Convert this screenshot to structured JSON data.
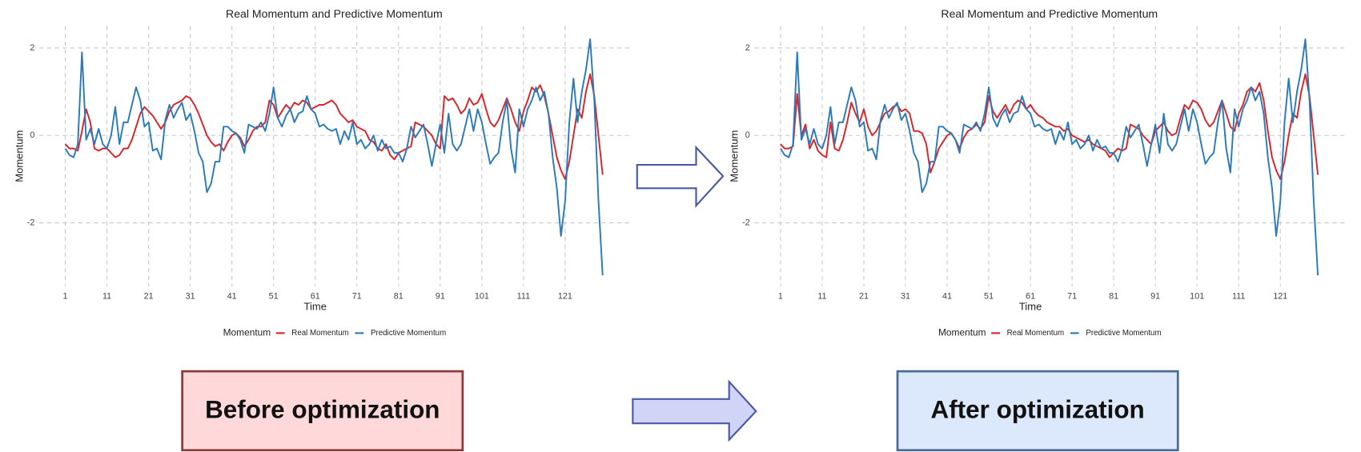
{
  "chart_data": [
    {
      "type": "line",
      "title": "Real Momentum and Predictive Momentum",
      "x_label": "Time",
      "y_label": "Momentum",
      "legend_title": "Momentum",
      "grid": true,
      "xlim": [
        -5.3,
        136.4
      ],
      "ylim": [
        -3.45,
        2.5
      ],
      "xticks": [
        1,
        11,
        21,
        31,
        41,
        51,
        61,
        71,
        81,
        91,
        101,
        111,
        121
      ],
      "yticks": [
        -2,
        0,
        2
      ],
      "x": [
        1,
        2,
        3,
        4,
        5,
        6,
        7,
        8,
        9,
        10,
        11,
        12,
        13,
        14,
        15,
        16,
        17,
        18,
        19,
        20,
        21,
        22,
        23,
        24,
        25,
        26,
        27,
        28,
        29,
        30,
        31,
        32,
        33,
        34,
        35,
        36,
        37,
        38,
        39,
        40,
        41,
        42,
        43,
        44,
        45,
        46,
        47,
        48,
        49,
        50,
        51,
        52,
        53,
        54,
        55,
        56,
        57,
        58,
        59,
        60,
        61,
        62,
        63,
        64,
        65,
        66,
        67,
        68,
        69,
        70,
        71,
        72,
        73,
        74,
        75,
        76,
        77,
        78,
        79,
        80,
        81,
        82,
        83,
        84,
        85,
        86,
        87,
        88,
        89,
        90,
        91,
        92,
        93,
        94,
        95,
        96,
        97,
        98,
        99,
        100,
        101,
        102,
        103,
        104,
        105,
        106,
        107,
        108,
        109,
        110,
        111,
        112,
        113,
        114,
        115,
        116,
        117,
        118,
        119,
        120,
        121,
        122,
        123,
        124,
        125,
        126,
        127,
        128,
        129,
        130
      ],
      "series": [
        {
          "name": "Real Momentum",
          "color": "#d7262b",
          "values": [
            -0.2,
            -0.3,
            -0.3,
            -0.35,
            0.1,
            0.6,
            0.3,
            -0.3,
            -0.35,
            -0.3,
            -0.3,
            -0.4,
            -0.5,
            -0.45,
            -0.3,
            -0.3,
            -0.1,
            0.2,
            0.5,
            0.65,
            0.55,
            0.45,
            0.3,
            0.15,
            0.3,
            0.55,
            0.7,
            0.75,
            0.8,
            0.9,
            0.85,
            0.7,
            0.5,
            0.25,
            0.0,
            -0.15,
            -0.25,
            -0.2,
            -0.35,
            -0.15,
            0.0,
            0.05,
            -0.05,
            -0.25,
            -0.1,
            0.1,
            0.2,
            0.2,
            0.3,
            0.8,
            0.7,
            0.4,
            0.55,
            0.7,
            0.6,
            0.75,
            0.7,
            0.8,
            0.75,
            0.6,
            0.65,
            0.7,
            0.7,
            0.75,
            0.8,
            0.7,
            0.5,
            0.4,
            0.3,
            0.35,
            0.2,
            0.15,
            0.1,
            -0.1,
            -0.15,
            -0.3,
            -0.35,
            -0.2,
            -0.45,
            -0.55,
            -0.4,
            -0.35,
            -0.3,
            -0.25,
            0.3,
            0.25,
            0.2,
            0.1,
            0.0,
            -0.2,
            -0.3,
            0.9,
            0.8,
            0.85,
            0.7,
            0.5,
            0.6,
            0.85,
            0.7,
            0.75,
            0.95,
            0.6,
            0.3,
            0.2,
            0.35,
            0.6,
            0.85,
            0.6,
            0.3,
            0.1,
            0.55,
            0.8,
            1.1,
            1.0,
            1.15,
            0.9,
            0.5,
            0.0,
            -0.5,
            -0.8,
            -1.0,
            -0.6,
            0.0,
            0.6,
            0.4,
            1.0,
            1.4,
            0.9,
            0.0,
            -0.9
          ]
        },
        {
          "name": "Predictive Momentum",
          "color": "#2b7bba",
          "values": [
            -0.3,
            -0.45,
            -0.5,
            -0.2,
            1.9,
            -0.1,
            0.15,
            -0.2,
            0.15,
            -0.2,
            -0.3,
            0.0,
            0.65,
            -0.2,
            0.3,
            0.3,
            0.7,
            1.1,
            0.8,
            0.2,
            0.3,
            -0.35,
            -0.3,
            -0.55,
            0.35,
            0.7,
            0.4,
            0.6,
            0.75,
            0.35,
            0.5,
            0.1,
            -0.4,
            -0.6,
            -1.3,
            -1.1,
            -0.6,
            -0.6,
            0.2,
            0.2,
            0.1,
            0.05,
            -0.1,
            -0.4,
            0.25,
            0.2,
            0.15,
            0.3,
            0.1,
            0.5,
            1.1,
            0.4,
            0.2,
            0.45,
            0.6,
            0.3,
            0.5,
            0.55,
            0.9,
            0.6,
            0.5,
            0.2,
            0.25,
            0.15,
            0.1,
            0.15,
            -0.2,
            0.1,
            -0.1,
            0.3,
            -0.2,
            -0.1,
            -0.3,
            -0.2,
            0.0,
            -0.35,
            -0.1,
            -0.3,
            -0.25,
            -0.4,
            -0.4,
            -0.6,
            -0.3,
            0.2,
            -0.05,
            0.1,
            0.25,
            -0.2,
            -0.7,
            -0.2,
            0.25,
            -0.4,
            0.5,
            -0.2,
            -0.35,
            -0.2,
            0.2,
            0.6,
            0.1,
            0.6,
            0.3,
            -0.2,
            -0.65,
            -0.5,
            -0.4,
            0.3,
            0.8,
            -0.3,
            -0.85,
            0.6,
            0.2,
            0.6,
            0.8,
            1.1,
            0.8,
            1.0,
            0.5,
            -0.5,
            -1.2,
            -2.3,
            -1.5,
            0.3,
            1.3,
            0.3,
            1.0,
            1.5,
            2.2,
            0.8,
            -1.5,
            -3.2
          ]
        }
      ]
    },
    {
      "type": "line",
      "title": "Real Momentum and Predictive Momentum",
      "x_label": "Time",
      "y_label": "Momentum",
      "legend_title": "Momentum",
      "grid": true,
      "xlim": [
        -5.3,
        136.4
      ],
      "ylim": [
        -3.45,
        2.5
      ],
      "xticks": [
        1,
        11,
        21,
        31,
        41,
        51,
        61,
        71,
        81,
        91,
        101,
        111,
        121
      ],
      "yticks": [
        -2,
        0,
        2
      ],
      "x": [
        1,
        2,
        3,
        4,
        5,
        6,
        7,
        8,
        9,
        10,
        11,
        12,
        13,
        14,
        15,
        16,
        17,
        18,
        19,
        20,
        21,
        22,
        23,
        24,
        25,
        26,
        27,
        28,
        29,
        30,
        31,
        32,
        33,
        34,
        35,
        36,
        37,
        38,
        39,
        40,
        41,
        42,
        43,
        44,
        45,
        46,
        47,
        48,
        49,
        50,
        51,
        52,
        53,
        54,
        55,
        56,
        57,
        58,
        59,
        60,
        61,
        62,
        63,
        64,
        65,
        66,
        67,
        68,
        69,
        70,
        71,
        72,
        73,
        74,
        75,
        76,
        77,
        78,
        79,
        80,
        81,
        82,
        83,
        84,
        85,
        86,
        87,
        88,
        89,
        90,
        91,
        92,
        93,
        94,
        95,
        96,
        97,
        98,
        99,
        100,
        101,
        102,
        103,
        104,
        105,
        106,
        107,
        108,
        109,
        110,
        111,
        112,
        113,
        114,
        115,
        116,
        117,
        118,
        119,
        120,
        121,
        122,
        123,
        124,
        125,
        126,
        127,
        128,
        129,
        130
      ],
      "series": [
        {
          "name": "Real Momentum",
          "color": "#d7262b",
          "values": [
            -0.2,
            -0.3,
            -0.3,
            -0.25,
            0.95,
            0.0,
            0.25,
            -0.3,
            -0.1,
            -0.35,
            -0.45,
            -0.5,
            0.3,
            -0.3,
            -0.35,
            -0.1,
            0.3,
            0.75,
            0.5,
            0.3,
            0.6,
            0.2,
            0.0,
            0.1,
            0.3,
            0.5,
            0.55,
            0.65,
            0.7,
            0.55,
            0.6,
            0.5,
            0.1,
            0.1,
            0.05,
            -0.2,
            -0.85,
            -0.6,
            -0.3,
            -0.15,
            0.0,
            0.05,
            -0.1,
            -0.3,
            -0.05,
            0.1,
            0.15,
            0.25,
            0.15,
            0.3,
            0.9,
            0.55,
            0.4,
            0.55,
            0.7,
            0.5,
            0.7,
            0.8,
            0.75,
            0.6,
            0.7,
            0.55,
            0.45,
            0.4,
            0.3,
            0.25,
            0.2,
            0.2,
            0.1,
            0.15,
            0.0,
            -0.05,
            -0.1,
            -0.15,
            -0.1,
            -0.2,
            -0.25,
            -0.3,
            -0.35,
            -0.5,
            -0.4,
            -0.3,
            -0.35,
            -0.3,
            0.25,
            0.2,
            0.15,
            0.0,
            -0.1,
            -0.2,
            0.1,
            0.2,
            0.3,
            0.1,
            0.0,
            0.05,
            0.4,
            0.7,
            0.6,
            0.8,
            0.75,
            0.6,
            0.35,
            0.2,
            0.3,
            0.55,
            0.8,
            0.5,
            0.2,
            0.1,
            0.5,
            0.7,
            1.0,
            1.1,
            1.0,
            1.2,
            0.8,
            0.1,
            -0.5,
            -0.8,
            -1.0,
            -0.6,
            0.0,
            0.5,
            0.4,
            1.0,
            1.4,
            0.9,
            0.0,
            -0.9
          ]
        },
        {
          "name": "Predictive Momentum",
          "color": "#2b7bba",
          "values": [
            -0.3,
            -0.45,
            -0.5,
            -0.2,
            1.9,
            -0.1,
            0.15,
            -0.2,
            0.15,
            -0.2,
            -0.3,
            0.0,
            0.65,
            -0.2,
            0.3,
            0.3,
            0.7,
            1.1,
            0.8,
            0.2,
            0.3,
            -0.35,
            -0.3,
            -0.55,
            0.35,
            0.7,
            0.4,
            0.6,
            0.75,
            0.35,
            0.5,
            0.1,
            -0.4,
            -0.6,
            -1.3,
            -1.1,
            -0.6,
            -0.6,
            0.2,
            0.2,
            0.1,
            0.05,
            -0.1,
            -0.4,
            0.25,
            0.2,
            0.15,
            0.3,
            0.1,
            0.5,
            1.1,
            0.4,
            0.2,
            0.45,
            0.6,
            0.3,
            0.5,
            0.55,
            0.9,
            0.6,
            0.5,
            0.2,
            0.25,
            0.15,
            0.1,
            0.15,
            -0.2,
            0.1,
            -0.1,
            0.3,
            -0.2,
            -0.1,
            -0.3,
            -0.2,
            0.0,
            -0.35,
            -0.1,
            -0.3,
            -0.25,
            -0.4,
            -0.4,
            -0.6,
            -0.3,
            0.2,
            -0.05,
            0.1,
            0.25,
            -0.2,
            -0.7,
            -0.2,
            0.25,
            -0.4,
            0.5,
            -0.2,
            -0.35,
            -0.2,
            0.2,
            0.6,
            0.1,
            0.6,
            0.3,
            -0.2,
            -0.65,
            -0.5,
            -0.4,
            0.3,
            0.8,
            -0.3,
            -0.85,
            0.6,
            0.2,
            0.6,
            0.8,
            1.1,
            0.8,
            1.0,
            0.5,
            -0.5,
            -1.2,
            -2.3,
            -1.5,
            0.3,
            1.3,
            0.3,
            1.0,
            1.5,
            2.2,
            0.8,
            -1.5,
            -3.2
          ]
        }
      ]
    }
  ],
  "labels": {
    "before": "Before optimization",
    "after": "After optimization"
  }
}
